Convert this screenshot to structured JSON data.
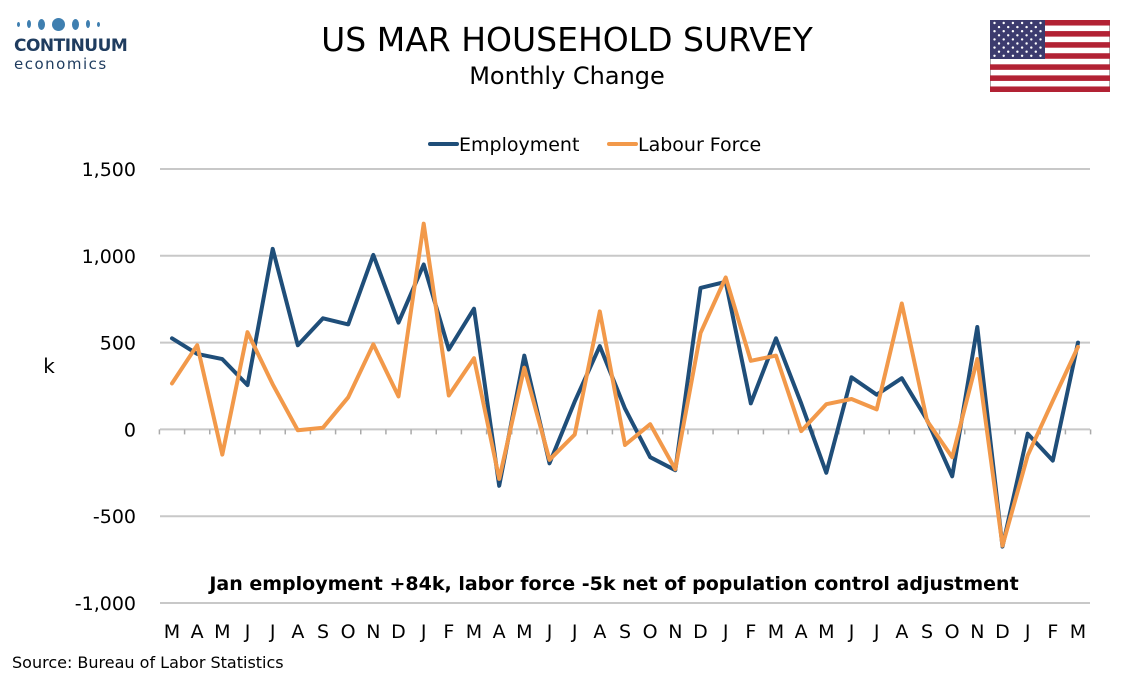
{
  "logo": {
    "name": "CONTINUUM",
    "sub": "economics"
  },
  "title": "US MAR HOUSEHOLD SURVEY",
  "subtitle": "Monthly Change",
  "source": "Source: Bureau of Labor Statistics",
  "colors": {
    "employment": "#1f4e79",
    "labour_force": "#f2994a",
    "grid": "#c8c8c8",
    "logo": "#1f3c5f",
    "flag_red": "#b22234",
    "flag_blue": "#3c3b6e"
  },
  "chart_data": {
    "type": "line",
    "ylabel": "k",
    "ylim": [
      -1000,
      1500
    ],
    "yticks": [
      -1000,
      -500,
      0,
      500,
      1000,
      1500
    ],
    "ytick_labels": [
      "-1,000",
      "-500",
      "0",
      "500",
      "1,000",
      "1,500"
    ],
    "categories": [
      "M",
      "A",
      "M",
      "J",
      "J",
      "A",
      "S",
      "O",
      "N",
      "D",
      "J",
      "F",
      "M",
      "A",
      "M",
      "J",
      "J",
      "A",
      "S",
      "O",
      "N",
      "D",
      "J",
      "F",
      "M",
      "A",
      "M",
      "J",
      "J",
      "A",
      "S",
      "O",
      "N",
      "D",
      "J",
      "F",
      "M"
    ],
    "legend_position": "top",
    "grid": true,
    "annotation": "Jan employment +84k, labor force -5k net of population control adjustment",
    "series": [
      {
        "name": "Employment",
        "color": "#1f4e79",
        "values": [
          525,
          435,
          405,
          255,
          1040,
          485,
          640,
          605,
          1005,
          615,
          950,
          460,
          695,
          -325,
          425,
          -195,
          160,
          480,
          120,
          -160,
          -235,
          815,
          850,
          150,
          525,
          150,
          -250,
          300,
          200,
          295,
          55,
          -270,
          590,
          -675,
          -25,
          -180,
          500
        ]
      },
      {
        "name": "Labour Force",
        "color": "#f2994a",
        "values": [
          265,
          485,
          -145,
          560,
          260,
          -5,
          10,
          185,
          490,
          190,
          1185,
          195,
          410,
          -285,
          355,
          -175,
          -30,
          680,
          -90,
          30,
          -230,
          555,
          875,
          395,
          425,
          -10,
          145,
          175,
          115,
          725,
          50,
          -160,
          405,
          -670,
          -150,
          165,
          475
        ]
      }
    ]
  }
}
